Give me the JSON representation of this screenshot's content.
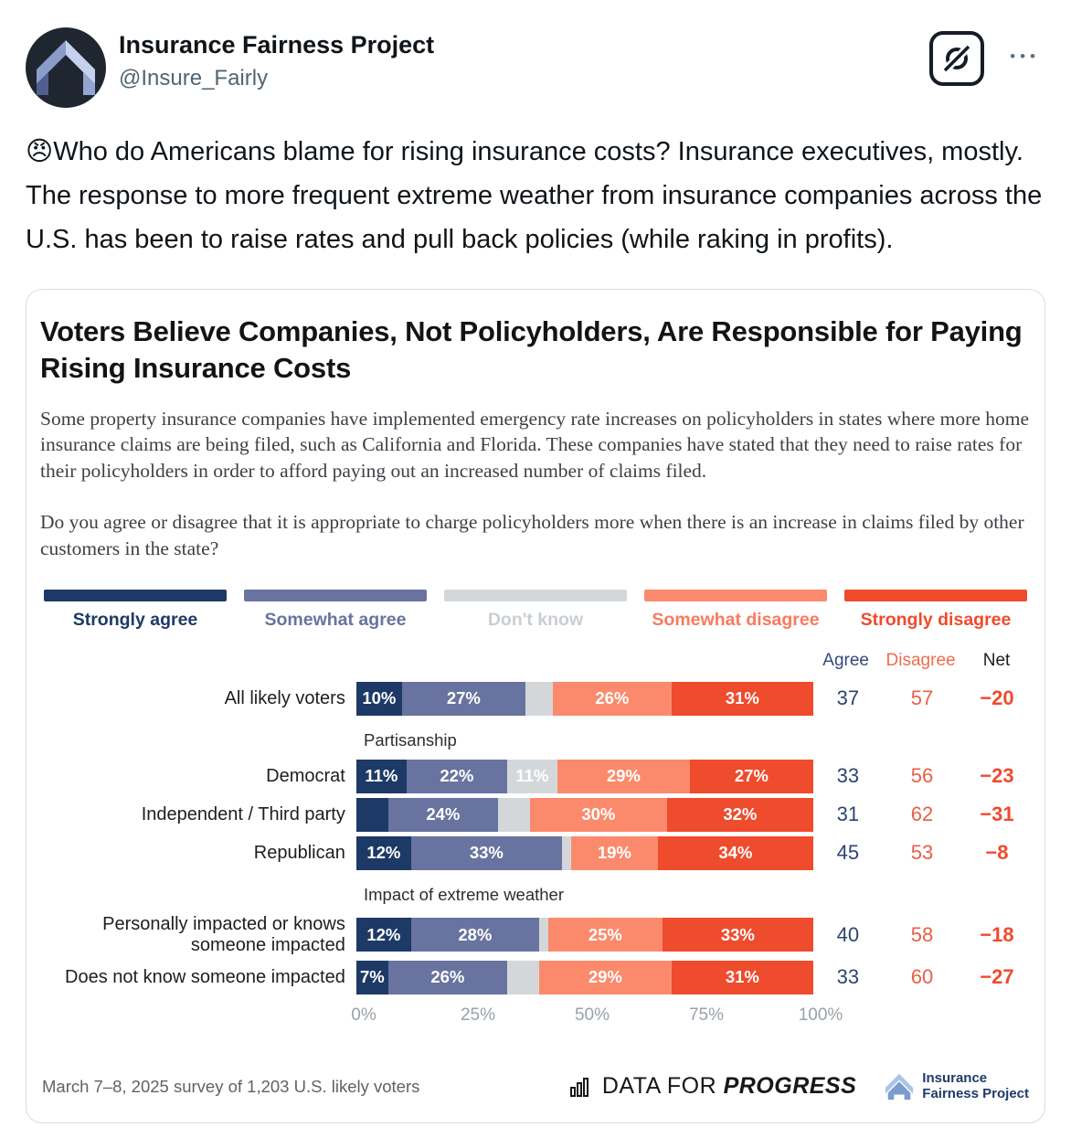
{
  "post": {
    "display_name": "Insurance Fairness Project",
    "handle": "@Insure_Fairly",
    "body_text": "😠Who do Americans blame for rising insurance costs? Insurance executives, mostly. The response to more frequent extreme weather from insurance companies across the U.S. has been to raise rates and pull back policies (while raking in profits).",
    "more_label": "•••"
  },
  "chart_data": {
    "type": "bar",
    "stacked": true,
    "orientation": "horizontal",
    "title": "Voters Believe Companies, Not Policyholders, Are Responsible for Paying Rising Insurance Costs",
    "description": "Some property insurance companies have implemented emergency rate increases on policyholders in states where more home insurance claims are being filed, such as California and Florida. These companies have stated that they need to raise rates for their policyholders in order to afford paying out an increased number of claims filed.",
    "question": "Do you agree or disagree that it is appropriate to charge policyholders more when there is an increase in claims filed by other customers in the state?",
    "legend": [
      {
        "label": "Strongly agree",
        "color": "#1d3a66",
        "label_color": "#1d3a66"
      },
      {
        "label": "Somewhat agree",
        "color": "#68739f",
        "label_color": "#68739f"
      },
      {
        "label": "Don't know",
        "color": "#d4d7da",
        "label_color": "#c9ced3"
      },
      {
        "label": "Somewhat disagree",
        "color": "#fb8a6c",
        "label_color": "#f97a5e"
      },
      {
        "label": "Strongly disagree",
        "color": "#ef4b2d",
        "label_color": "#ef4b2d"
      }
    ],
    "stat_headers": [
      {
        "label": "Agree"
      },
      {
        "label": "Disagree"
      },
      {
        "label": "Net"
      }
    ],
    "series_names": [
      "Strongly agree",
      "Somewhat agree",
      "Don't know",
      "Somewhat disagree",
      "Strongly disagree"
    ],
    "xlim": [
      0,
      100
    ],
    "axis_ticks": [
      "0%",
      "25%",
      "50%",
      "75%",
      "100%"
    ],
    "rows": [
      {
        "type": "bar",
        "label": "All likely voters",
        "values": [
          10,
          27,
          6,
          26,
          31
        ],
        "seg_labels": [
          "10%",
          "27%",
          "",
          "26%",
          "31%"
        ],
        "agree": "37",
        "disagree": "57",
        "net": "−20"
      },
      {
        "type": "section",
        "label": "Partisanship"
      },
      {
        "type": "bar",
        "label": "Democrat",
        "values": [
          11,
          22,
          11,
          29,
          27
        ],
        "seg_labels": [
          "11%",
          "22%",
          "11%",
          "29%",
          "27%"
        ],
        "agree": "33",
        "disagree": "56",
        "net": "−23"
      },
      {
        "type": "bar",
        "label": "Independent / Third party",
        "values": [
          7,
          24,
          7,
          30,
          32
        ],
        "seg_labels": [
          "",
          "24%",
          "",
          "30%",
          "32%"
        ],
        "agree": "31",
        "disagree": "62",
        "net": "−31"
      },
      {
        "type": "bar",
        "label": "Republican",
        "values": [
          12,
          33,
          2,
          19,
          34
        ],
        "seg_labels": [
          "12%",
          "33%",
          "",
          "19%",
          "34%"
        ],
        "agree": "45",
        "disagree": "53",
        "net": "−8"
      },
      {
        "type": "section",
        "label": "Impact of extreme weather"
      },
      {
        "type": "bar",
        "label": "Personally impacted or knows someone impacted",
        "values": [
          12,
          28,
          2,
          25,
          33
        ],
        "seg_labels": [
          "12%",
          "28%",
          "",
          "25%",
          "33%"
        ],
        "agree": "40",
        "disagree": "58",
        "net": "−18"
      },
      {
        "type": "bar",
        "label": "Does not know someone impacted",
        "values": [
          7,
          26,
          7,
          29,
          31
        ],
        "seg_labels": [
          "7%",
          "26%",
          "",
          "29%",
          "31%"
        ],
        "agree": "33",
        "disagree": "60",
        "net": "−27"
      }
    ],
    "footnote": "March 7–8, 2025 survey of 1,203 U.S. likely voters",
    "source_logo": {
      "prefix": "DATA FOR ",
      "bold": "PROGRESS"
    },
    "org_logo_line1": "Insurance",
    "org_logo_line2": "Fairness Project"
  }
}
